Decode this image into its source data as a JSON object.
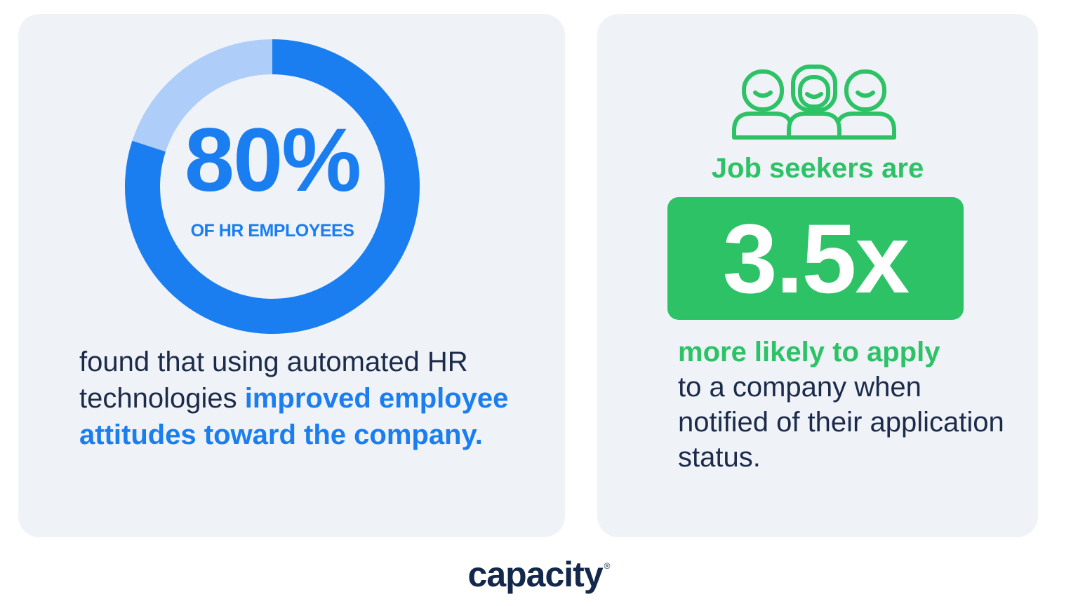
{
  "colors": {
    "blue": "#1a7ef0",
    "light_blue": "#aecdf8",
    "green": "#2dc266",
    "navy": "#1c2b4a",
    "card": "#eff3f8"
  },
  "left": {
    "donut_fraction": 0.8,
    "big_stat": "80%",
    "stat_label": "OF HR EMPLOYEES",
    "text_plain": "found that using automated HR technologies ",
    "text_highlight": "improved employee attitudes toward the company."
  },
  "right": {
    "icon": "three-people-icon",
    "lead": "Job seekers are",
    "big_stat": "3.5x",
    "text_highlight": "more likely to apply",
    "text_plain": "to a company when notified of their application status."
  },
  "logo": {
    "text": "capacity",
    "reg_mark": "®"
  }
}
